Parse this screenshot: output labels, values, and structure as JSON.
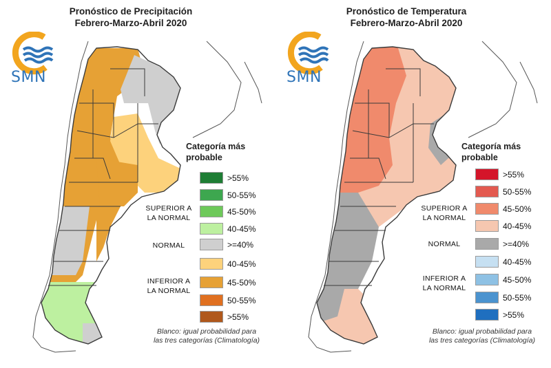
{
  "logo_text": "SMN",
  "colors": {
    "border": "#3a3a3a",
    "grey_normal": "#cfcfcf",
    "logo_orange": "#f2a51e",
    "logo_blue": "#2f74b8"
  },
  "precip": {
    "title_line1": "Pronóstico de Precipitación",
    "title_line2": "Febrero-Marzo-Abril 2020",
    "legend_title_line1": "Categoría más",
    "legend_title_line2": "probable",
    "legend": [
      {
        "label": ">55%",
        "color": "#1e7d34"
      },
      {
        "label": "50-55%",
        "color": "#3da74f"
      },
      {
        "label": "45-50%",
        "color": "#6ec95a"
      },
      {
        "label": "40-45%",
        "color": "#bdf0a0"
      },
      {
        "label": ">=40%",
        "color": "#cfcfcf"
      },
      {
        "label": "40-45%",
        "color": "#fdd27c"
      },
      {
        "label": "45-50%",
        "color": "#e6a135"
      },
      {
        "label": "50-55%",
        "color": "#e07020"
      },
      {
        "label": ">55%",
        "color": "#b0581c"
      }
    ],
    "superior_line1": "SUPERIOR A",
    "superior_line2": "LA NORMAL",
    "normal": "NORMAL",
    "inferior_line1": "INFERIOR A",
    "inferior_line2": "LA NORMAL",
    "note_line1": "Blanco: igual probabilidad para",
    "note_line2": "las tres categorías (Climatología)"
  },
  "temp": {
    "title_line1": "Pronóstico de Temperatura",
    "title_line2": "Febrero-Marzo-Abril 2020",
    "legend_title_line1": "Categoría más",
    "legend_title_line2": "probable",
    "legend": [
      {
        "label": ">55%",
        "color": "#d4152a"
      },
      {
        "label": "50-55%",
        "color": "#e35a50"
      },
      {
        "label": "45-50%",
        "color": "#f08a6c"
      },
      {
        "label": "40-45%",
        "color": "#f6c7b0"
      },
      {
        "label": ">=40%",
        "color": "#a9a9a9"
      },
      {
        "label": "40-45%",
        "color": "#c6e0f2"
      },
      {
        "label": "45-50%",
        "color": "#8ec1e4"
      },
      {
        "label": "50-55%",
        "color": "#4b93cf"
      },
      {
        "label": ">55%",
        "color": "#1f6fbf"
      }
    ],
    "superior_line1": "SUPERIOR A",
    "superior_line2": "LA NORMAL",
    "normal": "NORMAL",
    "inferior_line1": "INFERIOR A",
    "inferior_line2": "LA NORMAL",
    "note_line1": "Blanco: igual probabilidad para",
    "note_line2": "las tres categorías (Climatología)"
  }
}
